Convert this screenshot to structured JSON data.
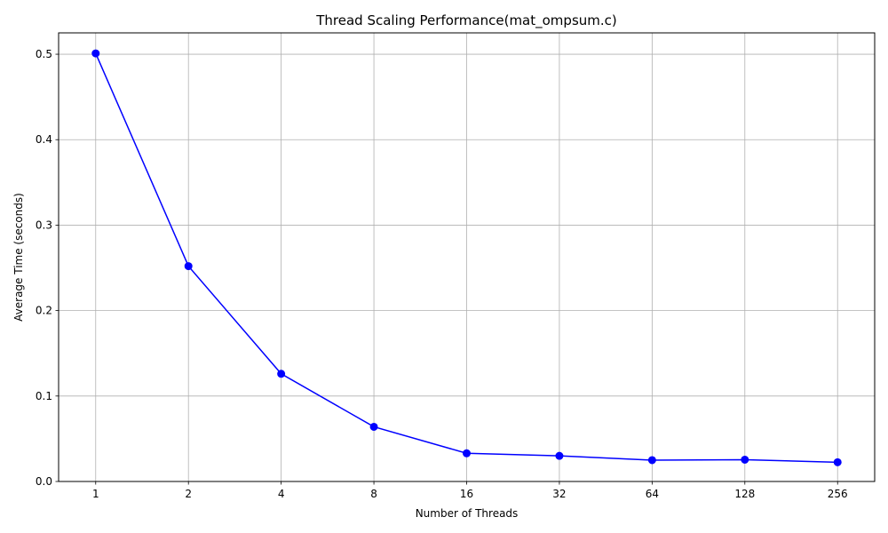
{
  "chart_data": {
    "type": "line",
    "title": "Thread Scaling Performance(mat_ompsum.c)",
    "xlabel": "Number of Threads",
    "ylabel": "Average Time (seconds)",
    "x_scale": "log2",
    "categories": [
      "1",
      "2",
      "4",
      "8",
      "16",
      "32",
      "64",
      "128",
      "256"
    ],
    "x": [
      1,
      2,
      4,
      8,
      16,
      32,
      64,
      128,
      256
    ],
    "series": [
      {
        "values": [
          0.501,
          0.252,
          0.126,
          0.064,
          0.033,
          0.03,
          0.025,
          0.0255,
          0.0225
        ],
        "color": "#0000ff",
        "marker": "circle"
      }
    ],
    "ylim": [
      0.0,
      0.525
    ],
    "yticks": [
      0.0,
      0.1,
      0.2,
      0.3,
      0.4,
      0.5
    ],
    "ytick_labels": [
      "0.0",
      "0.1",
      "0.2",
      "0.3",
      "0.4",
      "0.5"
    ],
    "grid": true,
    "legend": "none"
  }
}
